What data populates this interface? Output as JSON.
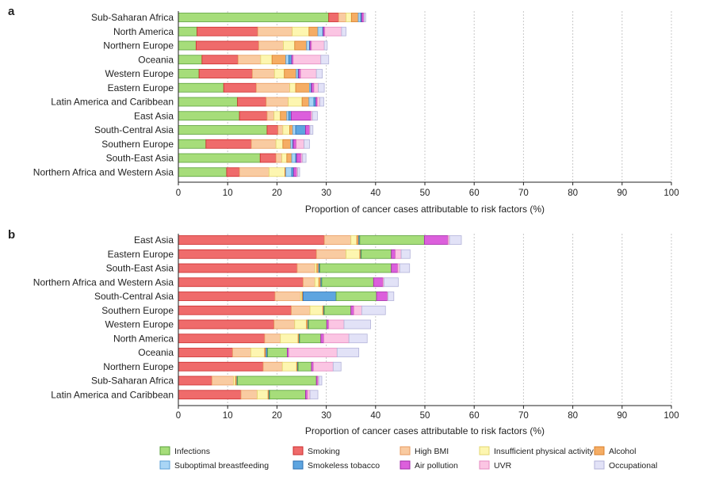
{
  "chart_data": [
    {
      "type": "bar",
      "orientation": "horizontal",
      "stacked": true,
      "panel": "a",
      "xlabel": "Proportion of cancer cases attributable to risk factors (%)",
      "xlim": [
        0,
        100
      ],
      "xticks": [
        "0",
        "10",
        "20",
        "30",
        "40",
        "50",
        "60",
        "70",
        "80",
        "90",
        "100"
      ],
      "grid": "vertical dotted",
      "categories": [
        "Sub-Saharan Africa",
        "North America",
        "Northern Europe",
        "Oceania",
        "Western Europe",
        "Eastern Europe",
        "Latin America and Caribbean",
        "East Asia",
        "South-Central Asia",
        "Southern Europe",
        "South-East Asia",
        "Northern Africa and Western Asia"
      ],
      "series": [
        {
          "name": "Infections",
          "values": [
            30.5,
            3.8,
            3.6,
            4.8,
            4.2,
            9.2,
            12.0,
            12.4,
            18.0,
            5.6,
            16.6,
            9.8
          ]
        },
        {
          "name": "Smoking",
          "values": [
            2.0,
            12.3,
            12.7,
            7.3,
            10.8,
            6.6,
            5.8,
            5.6,
            2.2,
            9.2,
            3.2,
            2.6
          ]
        },
        {
          "name": "High BMI",
          "values": [
            1.5,
            7.0,
            5.0,
            4.6,
            4.5,
            6.8,
            4.5,
            1.4,
            1.0,
            5.0,
            1.2,
            6.0
          ]
        },
        {
          "name": "Insufficient physical activity",
          "values": [
            1.1,
            3.4,
            2.3,
            2.3,
            2.0,
            1.2,
            2.8,
            1.3,
            1.4,
            1.4,
            1.0,
            3.2
          ]
        },
        {
          "name": "Alcohol",
          "values": [
            1.4,
            1.8,
            2.4,
            2.8,
            2.4,
            2.8,
            1.4,
            1.3,
            0.6,
            1.6,
            1.0,
            0.2
          ]
        },
        {
          "name": "Suboptimal breastfeeding",
          "values": [
            0.5,
            1.0,
            0.6,
            0.6,
            0.4,
            0.3,
            1.0,
            0.4,
            0.6,
            0.4,
            0.8,
            1.2
          ]
        },
        {
          "name": "Smokeless tobacco",
          "values": [
            0.2,
            0.1,
            0.1,
            0.6,
            0.1,
            0.1,
            0.4,
            0.5,
            2.0,
            0.1,
            0.2,
            0.4
          ]
        },
        {
          "name": "Air pollution",
          "values": [
            0.4,
            0.3,
            0.3,
            0.3,
            0.4,
            0.5,
            0.3,
            4.0,
            0.8,
            0.6,
            0.9,
            0.6
          ]
        },
        {
          "name": "UVR",
          "values": [
            0.1,
            3.4,
            2.6,
            5.6,
            3.2,
            0.9,
            0.5,
            0.3,
            0.1,
            1.6,
            0.3,
            0.2
          ]
        },
        {
          "name": "Occupational",
          "values": [
            0.3,
            0.9,
            0.6,
            1.6,
            1.2,
            1.2,
            0.8,
            1.0,
            0.6,
            1.1,
            0.7,
            0.4
          ]
        }
      ]
    },
    {
      "type": "bar",
      "orientation": "horizontal",
      "stacked": true,
      "panel": "b",
      "xlabel": "Proportion of cancer cases attributable to risk factors (%)",
      "xlim": [
        0,
        100
      ],
      "xticks": [
        "0",
        "10",
        "20",
        "30",
        "40",
        "50",
        "60",
        "70",
        "80",
        "90",
        "100"
      ],
      "grid": "vertical dotted",
      "categories": [
        "East Asia",
        "Eastern Europe",
        "South-East Asia",
        "Northern Africa and Western Asia",
        "South-Central Asia",
        "Southern Europe",
        "Western Europe",
        "North America",
        "Oceania",
        "Northern Europe",
        "Sub-Saharan Africa",
        "Latin America and Caribbean"
      ],
      "series": [
        {
          "name": "Smoking",
          "values": [
            29.6,
            28.0,
            24.1,
            25.3,
            19.6,
            22.9,
            19.4,
            17.5,
            11.0,
            17.2,
            6.8,
            12.7
          ]
        },
        {
          "name": "High BMI",
          "values": [
            5.4,
            6.0,
            3.6,
            2.4,
            5.2,
            3.8,
            4.2,
            3.2,
            3.7,
            3.9,
            4.4,
            3.3
          ]
        },
        {
          "name": "Insufficient physical activity",
          "values": [
            1.2,
            2.8,
            0.4,
            0.8,
            0.3,
            2.6,
            2.4,
            3.6,
            2.8,
            2.9,
            0.4,
            2.2
          ]
        },
        {
          "name": "Alcohol",
          "values": [
            0.4,
            0.2,
            0.4,
            0.4,
            0.2,
            0.2,
            0.3,
            0.2,
            0.3,
            0.2,
            0.3,
            0.2
          ]
        },
        {
          "name": "Smokeless tobacco",
          "values": [
            0.2,
            0.1,
            0.2,
            0.2,
            6.7,
            0.1,
            0.1,
            0.1,
            0.3,
            0.1,
            0.1,
            0.1
          ]
        },
        {
          "name": "Infections",
          "values": [
            13.1,
            6.1,
            14.5,
            10.5,
            8.2,
            5.4,
            3.7,
            4.3,
            4.0,
            2.7,
            16.0,
            7.3
          ]
        },
        {
          "name": "Air pollution",
          "values": [
            4.8,
            0.8,
            1.3,
            1.9,
            2.2,
            0.6,
            0.4,
            0.6,
            0.3,
            0.4,
            0.3,
            0.4
          ]
        },
        {
          "name": "UVR",
          "values": [
            0.3,
            1.2,
            0.4,
            0.2,
            0.1,
            1.6,
            3.1,
            5.1,
            9.8,
            4.0,
            0.2,
            0.5
          ]
        },
        {
          "name": "Occupational",
          "values": [
            2.4,
            1.8,
            2.0,
            2.9,
            1.2,
            4.8,
            5.4,
            3.7,
            4.4,
            1.6,
            0.6,
            1.6
          ]
        }
      ]
    }
  ],
  "panels": [
    {
      "letter": "a",
      "xlabel": "Proportion of cancer cases attributable to risk factors (%)"
    },
    {
      "letter": "b",
      "xlabel": "Proportion of cancer cases attributable to risk factors (%)"
    }
  ],
  "legend": {
    "placement": "bottom",
    "items": [
      {
        "name": "Infections",
        "color": "#a6dd7a",
        "border": "#5aa23a"
      },
      {
        "name": "Smoking",
        "color": "#ef6b6b",
        "border": "#cc2b2b"
      },
      {
        "name": "High BMI",
        "color": "#f9cba1",
        "border": "#e89a5e"
      },
      {
        "name": "Insufficient physical activity",
        "color": "#fdf6b0",
        "border": "#e3d670"
      },
      {
        "name": "Alcohol",
        "color": "#f5ad64",
        "border": "#d97f28"
      },
      {
        "name": "Suboptimal breastfeeding",
        "color": "#a9d5f5",
        "border": "#5b9fd6"
      },
      {
        "name": "Smokeless tobacco",
        "color": "#5ea5e0",
        "border": "#2c6fb1"
      },
      {
        "name": "Air pollution",
        "color": "#dc5fdc",
        "border": "#a02aa8"
      },
      {
        "name": "UVR",
        "color": "#fbc5e3",
        "border": "#e58ac0"
      },
      {
        "name": "Occupational",
        "color": "#e2e2f7",
        "border": "#b3b3d9"
      }
    ]
  }
}
